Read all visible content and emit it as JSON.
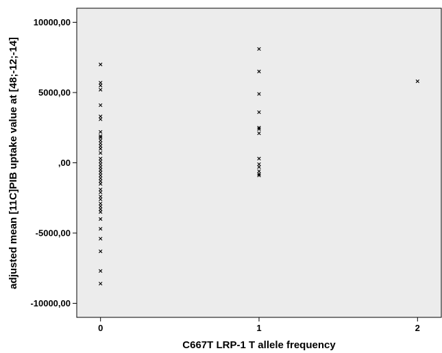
{
  "chart_data": {
    "type": "scatter",
    "title": "",
    "xlabel": "C667T LRP-1 T allele frequency",
    "ylabel": "adjusted mean [11C]PIB uptake value at [48;-12;-14]",
    "xlim": [
      -0.15,
      2.15
    ],
    "ylim": [
      -11000,
      11000
    ],
    "x_ticks": [
      {
        "value": 0,
        "label": "0"
      },
      {
        "value": 1,
        "label": "1"
      },
      {
        "value": 2,
        "label": "2"
      }
    ],
    "y_ticks": [
      {
        "value": 10000,
        "label": "10000,00"
      },
      {
        "value": 5000,
        "label": "5000,00"
      },
      {
        "value": 0,
        "label": ",00"
      },
      {
        "value": -5000,
        "label": "-5000,00"
      },
      {
        "value": -10000,
        "label": "-10000,00"
      }
    ],
    "grid": false,
    "background": "#ececec",
    "marker": "x",
    "marker_color": "#000000",
    "points": [
      {
        "x": 0,
        "y": 7000
      },
      {
        "x": 0,
        "y": 5700
      },
      {
        "x": 0,
        "y": 5500
      },
      {
        "x": 0,
        "y": 5200
      },
      {
        "x": 0,
        "y": 4100
      },
      {
        "x": 0,
        "y": 3300
      },
      {
        "x": 0,
        "y": 3100
      },
      {
        "x": 0,
        "y": 2200
      },
      {
        "x": 0,
        "y": 1900
      },
      {
        "x": 0,
        "y": 1800
      },
      {
        "x": 0,
        "y": 1600
      },
      {
        "x": 0,
        "y": 1400
      },
      {
        "x": 0,
        "y": 1200
      },
      {
        "x": 0,
        "y": 1000
      },
      {
        "x": 0,
        "y": 700
      },
      {
        "x": 0,
        "y": 300
      },
      {
        "x": 0,
        "y": 100
      },
      {
        "x": 0,
        "y": -100
      },
      {
        "x": 0,
        "y": -300
      },
      {
        "x": 0,
        "y": -500
      },
      {
        "x": 0,
        "y": -700
      },
      {
        "x": 0,
        "y": -900
      },
      {
        "x": 0,
        "y": -1100
      },
      {
        "x": 0,
        "y": -1300
      },
      {
        "x": 0,
        "y": -1500
      },
      {
        "x": 0,
        "y": -1900
      },
      {
        "x": 0,
        "y": -2100
      },
      {
        "x": 0,
        "y": -2400
      },
      {
        "x": 0,
        "y": -2600
      },
      {
        "x": 0,
        "y": -2900
      },
      {
        "x": 0,
        "y": -3100
      },
      {
        "x": 0,
        "y": -3300
      },
      {
        "x": 0,
        "y": -3500
      },
      {
        "x": 0,
        "y": -4000
      },
      {
        "x": 0,
        "y": -4700
      },
      {
        "x": 0,
        "y": -5400
      },
      {
        "x": 0,
        "y": -6300
      },
      {
        "x": 0,
        "y": -7700
      },
      {
        "x": 0,
        "y": -8600
      },
      {
        "x": 1,
        "y": 8100
      },
      {
        "x": 1,
        "y": 6500
      },
      {
        "x": 1,
        "y": 4900
      },
      {
        "x": 1,
        "y": 3600
      },
      {
        "x": 1,
        "y": 2500
      },
      {
        "x": 1,
        "y": 2400
      },
      {
        "x": 1,
        "y": 2100
      },
      {
        "x": 1,
        "y": 300
      },
      {
        "x": 1,
        "y": -100
      },
      {
        "x": 1,
        "y": -300
      },
      {
        "x": 1,
        "y": -600
      },
      {
        "x": 1,
        "y": -800
      },
      {
        "x": 1,
        "y": -900
      },
      {
        "x": 2,
        "y": 5800
      }
    ]
  }
}
